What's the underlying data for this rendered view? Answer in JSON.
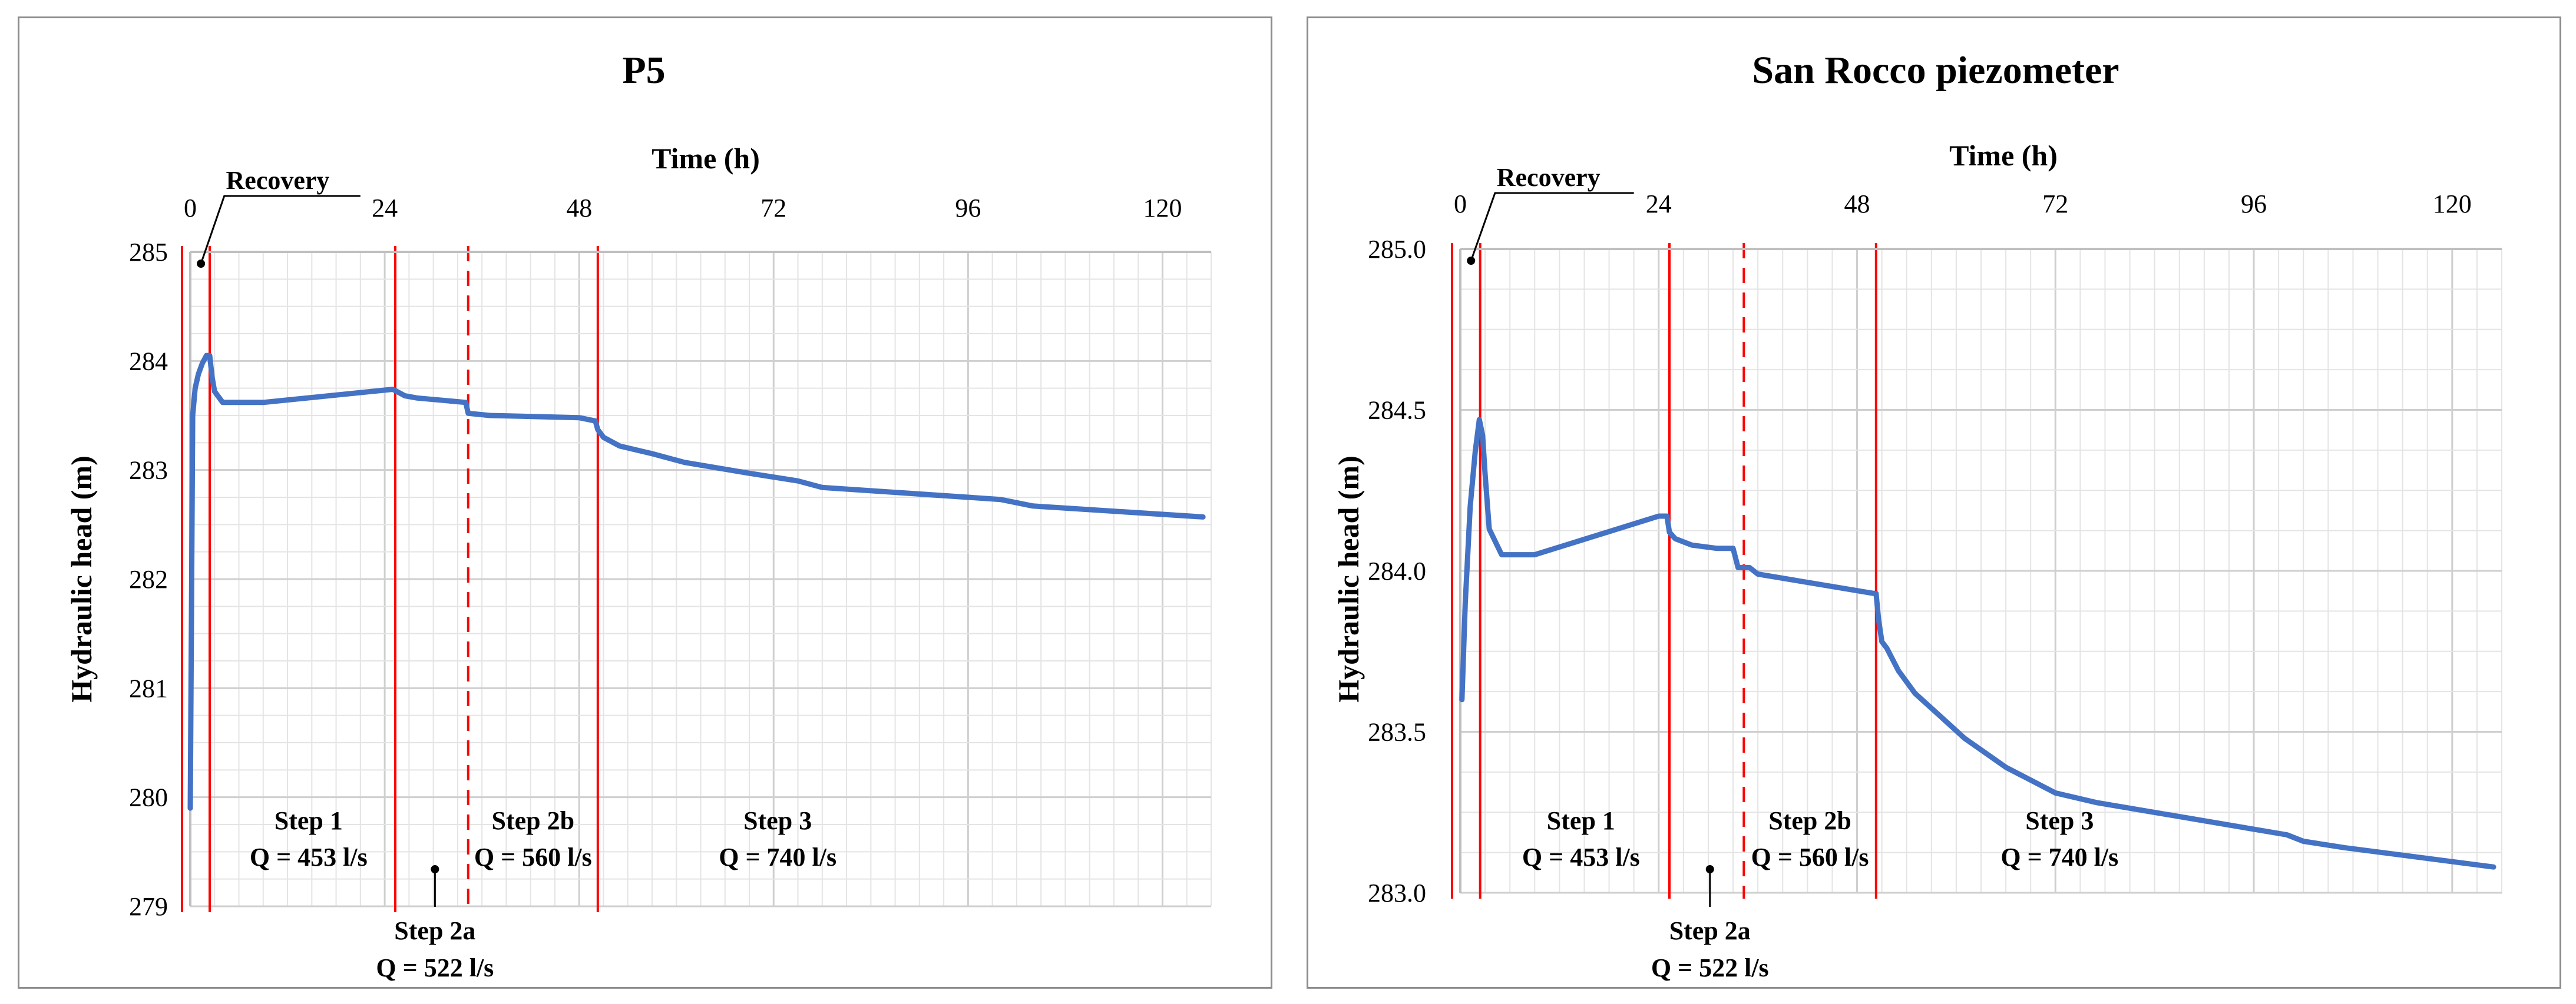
{
  "chart_data": [
    {
      "type": "line",
      "title": "P5",
      "xlabel": "Time (h)",
      "ylabel": "Hydraulic head (m)",
      "xlim": [
        0,
        126
      ],
      "ylim": [
        279,
        285
      ],
      "x_ticks": [
        0,
        24,
        48,
        72,
        96,
        120
      ],
      "y_ticks": [
        279,
        280,
        281,
        282,
        283,
        284,
        285
      ],
      "y_tick_labels": [
        "279",
        "280",
        "281",
        "282",
        "283",
        "284",
        "285"
      ],
      "grid": true,
      "series": [
        {
          "name": "P5",
          "color": "#4472c4",
          "x": [
            0,
            0.3,
            0.6,
            1,
            1.5,
            2,
            2.4,
            2.7,
            3,
            4,
            9,
            25,
            25.5,
            26.5,
            28,
            34,
            34.3,
            37,
            48,
            50,
            50.3,
            51,
            53,
            57,
            61,
            69,
            75,
            78,
            100,
            104,
            125
          ],
          "y": [
            279.9,
            283.5,
            283.75,
            283.88,
            283.98,
            284.05,
            284.05,
            283.85,
            283.72,
            283.62,
            283.62,
            283.74,
            283.72,
            283.68,
            283.66,
            283.62,
            283.52,
            283.5,
            283.48,
            283.45,
            283.37,
            283.3,
            283.22,
            283.15,
            283.07,
            282.97,
            282.9,
            282.84,
            282.73,
            282.67,
            282.57
          ]
        }
      ],
      "phase_lines": [
        0,
        2.4,
        25.3,
        34.3,
        50.3
      ],
      "annotations": {
        "recovery": "Recovery",
        "step1_title": "Step 1",
        "step1_q": "Q = 453 l/s",
        "step2a_title": "Step 2a",
        "step2a_q": "Q = 522 l/s",
        "step2b_title": "Step 2b",
        "step2b_q": "Q = 560 l/s",
        "step3_title": "Step 3",
        "step3_q": "Q = 740 l/s"
      },
      "colors": {
        "line": "#4472c4",
        "phase": "#ff0000",
        "grid": "#e4e4e4",
        "axis": "#bfbfbf"
      }
    },
    {
      "type": "line",
      "title": "San Rocco piezometer",
      "xlabel": "Time (h)",
      "ylabel": "Hydraulic head (m)",
      "xlim": [
        0,
        126
      ],
      "ylim": [
        283.0,
        285.0
      ],
      "x_ticks": [
        0,
        24,
        48,
        72,
        96,
        120
      ],
      "y_ticks": [
        283.0,
        283.5,
        284.0,
        284.5,
        285.0
      ],
      "y_tick_labels": [
        "283.0",
        "283.5",
        "284.0",
        "284.5",
        "285.0"
      ],
      "grid": true,
      "series": [
        {
          "name": "San Rocco piezometer",
          "color": "#4472c4",
          "x": [
            0.2,
            0.6,
            1.2,
            1.8,
            2.3,
            2.7,
            3,
            3.5,
            5,
            9,
            24,
            25,
            25.3,
            26,
            28,
            31,
            33,
            33.3,
            33.6,
            35,
            36,
            50,
            50.3,
            50.6,
            51,
            51.6,
            53,
            55,
            58,
            61,
            66,
            72,
            77,
            100,
            102,
            107,
            125
          ],
          "y": [
            283.6,
            283.9,
            284.2,
            284.37,
            284.47,
            284.42,
            284.3,
            284.13,
            284.05,
            284.05,
            284.17,
            284.17,
            284.12,
            284.1,
            284.08,
            284.07,
            284.07,
            284.04,
            284.01,
            284.01,
            283.99,
            283.93,
            283.93,
            283.85,
            283.78,
            283.76,
            283.69,
            283.62,
            283.55,
            283.48,
            283.39,
            283.31,
            283.28,
            283.18,
            283.16,
            283.14,
            283.08
          ]
        }
      ],
      "phase_lines": [
        0,
        2.4,
        25.3,
        34.3,
        50.3
      ],
      "annotations": {
        "recovery": "Recovery",
        "step1_title": "Step 1",
        "step1_q": "Q = 453 l/s",
        "step2a_title": "Step 2a",
        "step2a_q": "Q = 522 l/s",
        "step2b_title": "Step 2b",
        "step2b_q": "Q = 560 l/s",
        "step3_title": "Step 3",
        "step3_q": "Q = 740 l/s"
      },
      "colors": {
        "line": "#4472c4",
        "phase": "#ff0000",
        "grid": "#e4e4e4",
        "axis": "#bfbfbf"
      }
    }
  ]
}
